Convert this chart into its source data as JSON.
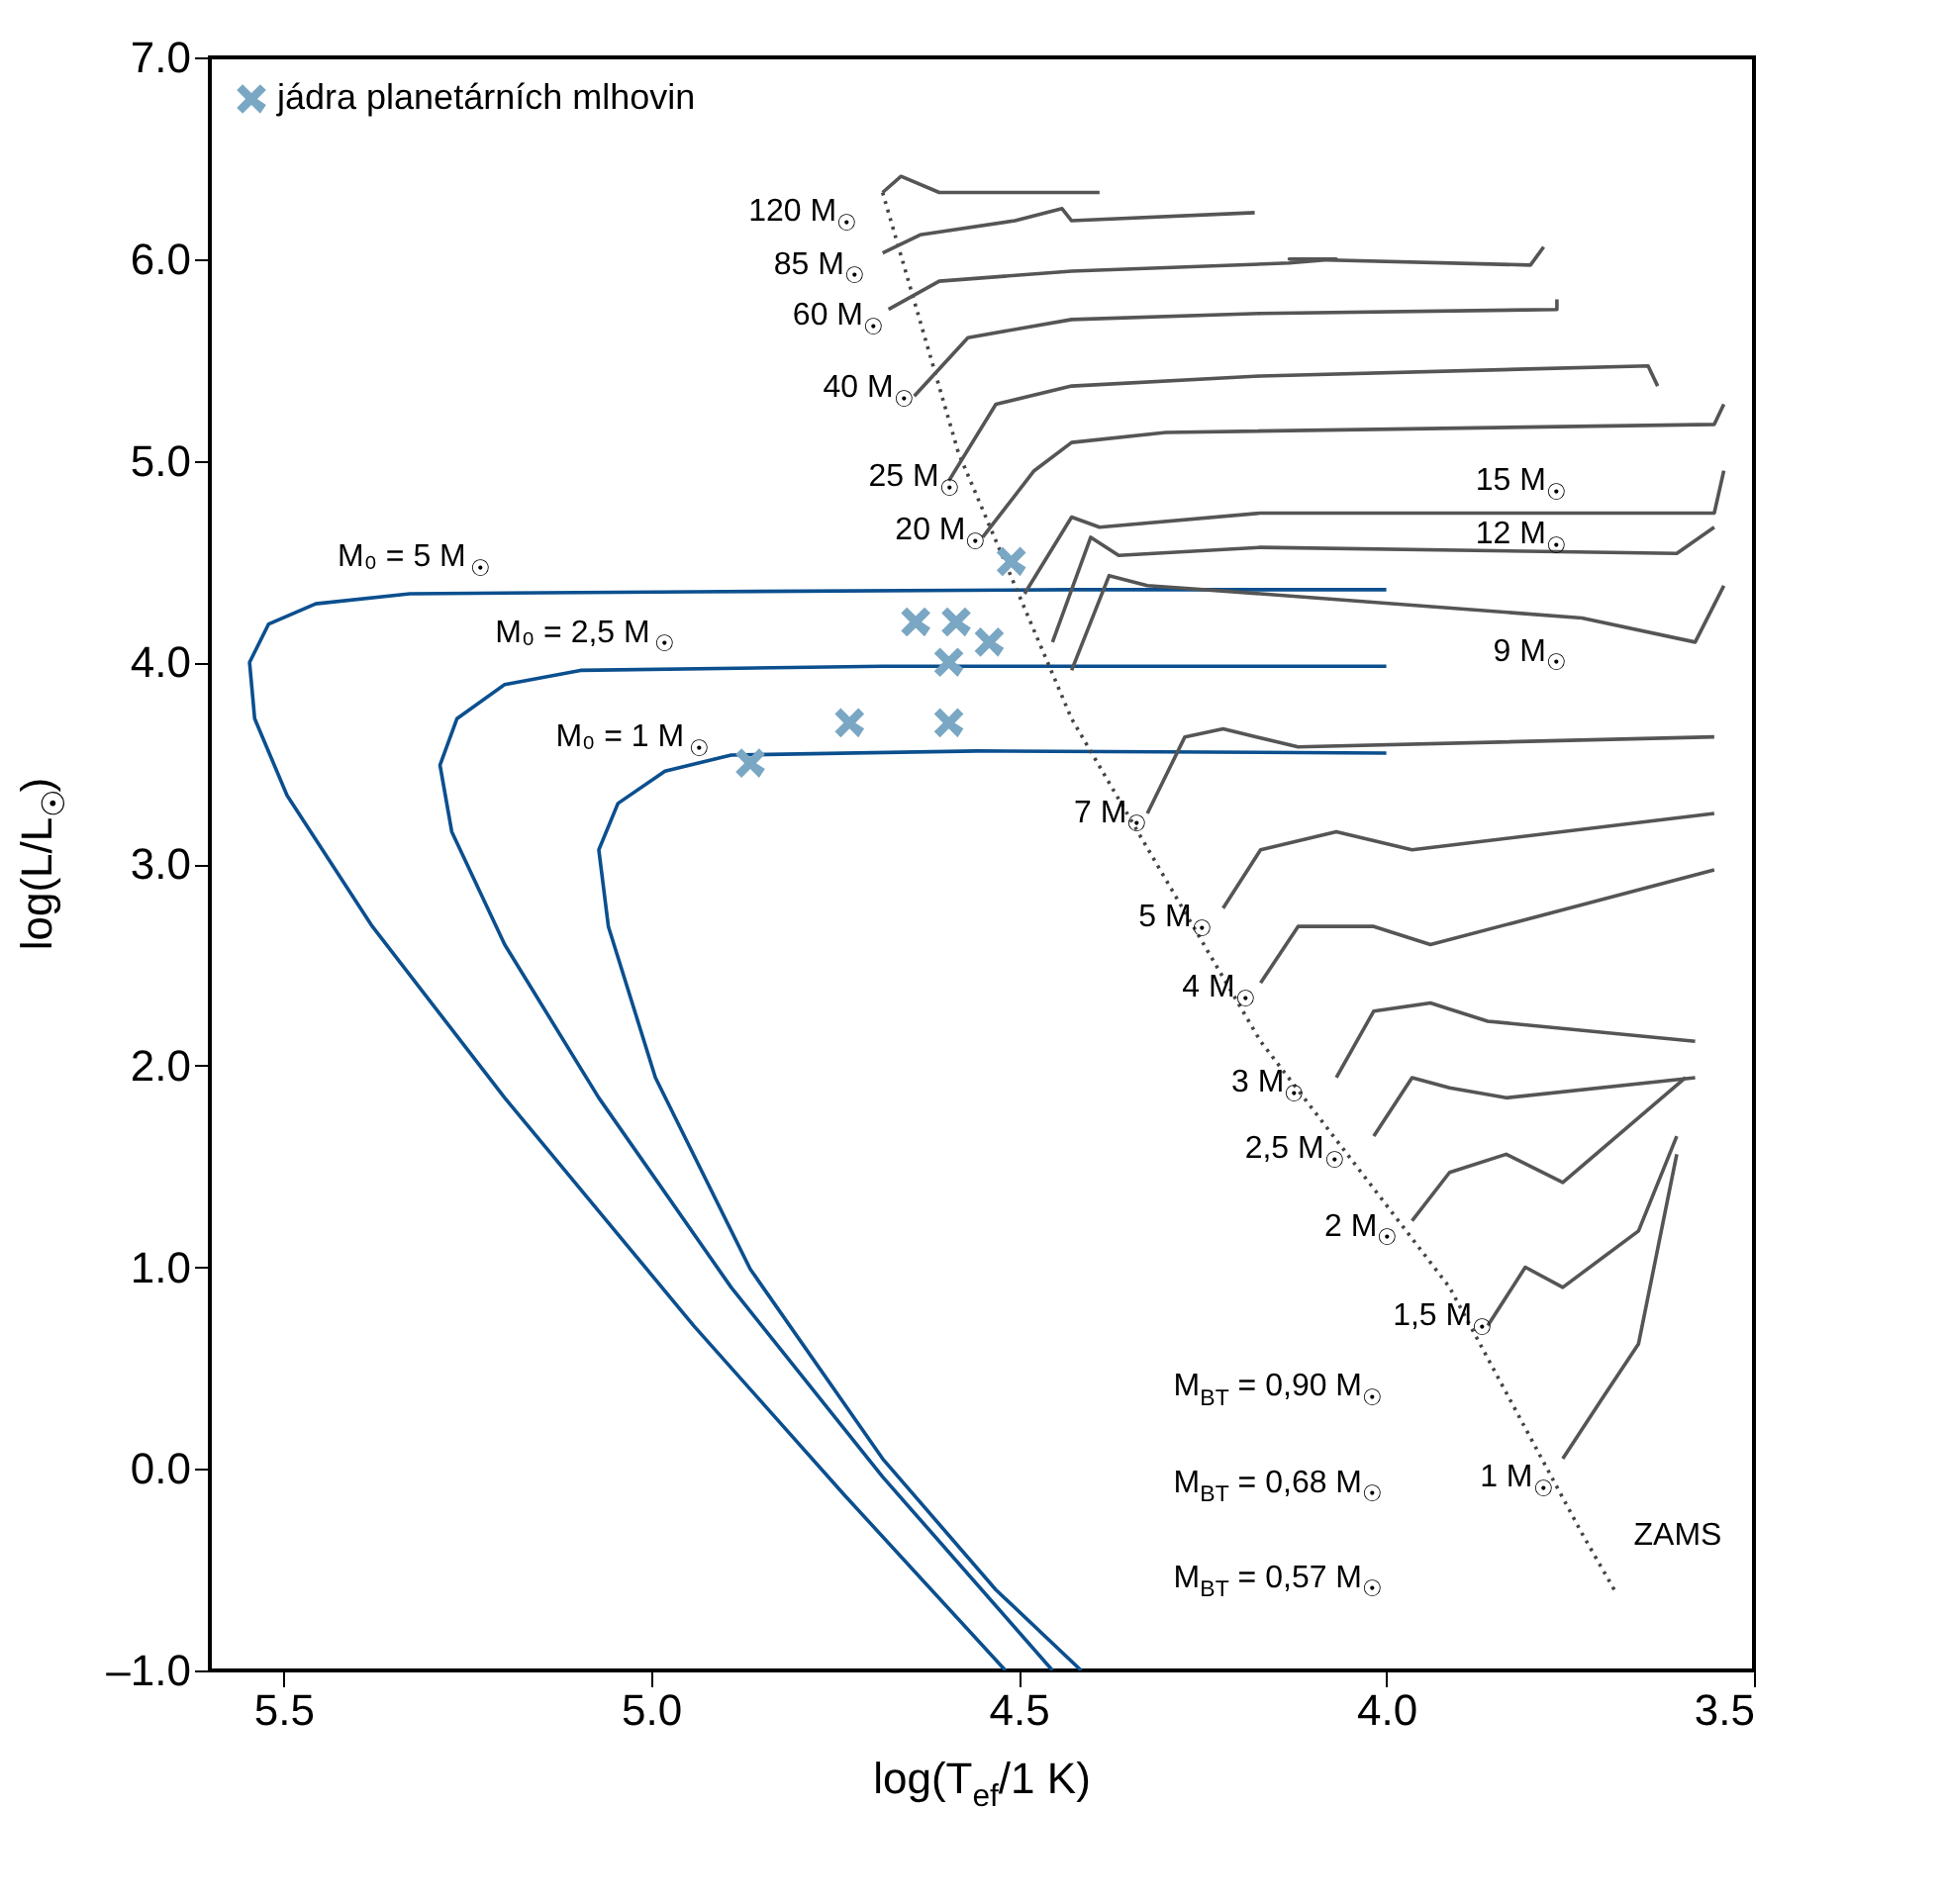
{
  "chart_data": {
    "type": "line",
    "xlabel": "log(T$_{ef}$/1 K)",
    "ylabel": "log(L/L$_{☉}$)",
    "xlim": [
      5.6,
      3.5
    ],
    "ylim": [
      -1.0,
      7.0
    ],
    "xticks": [
      {
        "value": 5.5,
        "label": "5.5"
      },
      {
        "value": 5.0,
        "label": "5.0"
      },
      {
        "value": 4.5,
        "label": "4.5"
      },
      {
        "value": 4.0,
        "label": "4.0"
      },
      {
        "value": 3.5,
        "label": "3.5"
      }
    ],
    "yticks": [
      {
        "value": -1.0,
        "label": "–1.0"
      },
      {
        "value": 0.0,
        "label": "0.0"
      },
      {
        "value": 1.0,
        "label": "1.0"
      },
      {
        "value": 2.0,
        "label": "2.0"
      },
      {
        "value": 3.0,
        "label": "3.0"
      },
      {
        "value": 4.0,
        "label": "4.0"
      },
      {
        "value": 5.0,
        "label": "5.0"
      },
      {
        "value": 6.0,
        "label": "6.0"
      },
      {
        "value": 7.0,
        "label": "7.0"
      }
    ],
    "grid": false,
    "legend": "top left",
    "line_style": "solid",
    "series": [
      {
        "color": "#0b4f8e",
        "x": [
          4.0,
          4.43,
          4.94,
          5.328,
          5.456,
          5.52,
          5.546,
          5.539,
          5.495,
          5.379,
          5.199,
          4.942,
          4.737,
          4.518
        ],
        "values": [
          4.36,
          4.36,
          4.35,
          4.34,
          4.29,
          4.19,
          4.0,
          3.72,
          3.34,
          2.69,
          1.84,
          0.71,
          -0.13,
          -1.0
        ]
      },
      {
        "color": "#0b4f8e",
        "x": [
          4.0,
          4.685,
          5.096,
          5.199,
          5.264,
          5.287,
          5.271,
          5.199,
          5.071,
          4.891,
          4.685,
          4.454
        ],
        "values": [
          3.98,
          3.98,
          3.96,
          3.89,
          3.72,
          3.49,
          3.16,
          2.6,
          1.84,
          0.9,
          -0.04,
          -1.0
        ]
      },
      {
        "color": "#0b4f8e",
        "x": [
          4.0,
          4.557,
          4.891,
          4.981,
          5.045,
          5.071,
          5.058,
          4.994,
          4.865,
          4.685,
          4.531,
          4.415
        ],
        "values": [
          3.55,
          3.56,
          3.54,
          3.46,
          3.3,
          3.07,
          2.69,
          1.94,
          0.99,
          0.05,
          -0.6,
          -1.0
        ]
      },
      {
        "color": "#444444",
        "line_style": "dotted",
        "x": [
          4.685,
          4.582,
          4.428,
          4.171,
          3.914,
          3.734,
          3.69
        ],
        "values": [
          6.33,
          5.04,
          3.72,
          2.12,
          0.9,
          -0.32,
          -0.6
        ]
      },
      {
        "color": "#555555",
        "x": [
          4.685,
          4.66,
          4.608,
          4.39
        ],
        "values": [
          6.33,
          6.41,
          6.33,
          6.33
        ]
      },
      {
        "color": "#555555",
        "x": [
          4.685,
          4.634,
          4.505,
          4.441,
          4.428,
          4.179
        ],
        "values": [
          6.03,
          6.12,
          6.19,
          6.25,
          6.19,
          6.23
        ]
      },
      {
        "color": "#555555",
        "x": [
          4.677,
          4.608,
          4.428,
          4.132,
          4.068,
          4.132,
          3.804,
          3.786
        ],
        "values": [
          5.75,
          5.89,
          5.94,
          5.98,
          6.0,
          6.0,
          5.97,
          6.06
        ]
      },
      {
        "color": "#555555",
        "x": [
          4.642,
          4.569,
          4.428,
          4.171,
          3.768,
          3.768
        ],
        "values": [
          5.32,
          5.61,
          5.7,
          5.73,
          5.75,
          5.8
        ]
      },
      {
        "color": "#555555",
        "x": [
          4.595,
          4.531,
          4.428,
          4.171,
          3.644,
          3.631
        ],
        "values": [
          4.9,
          5.28,
          5.37,
          5.42,
          5.47,
          5.37
        ]
      },
      {
        "color": "#555555",
        "x": [
          4.549,
          4.479,
          4.428,
          4.3,
          3.554,
          3.541
        ],
        "values": [
          4.62,
          4.95,
          5.09,
          5.14,
          5.18,
          5.28
        ]
      },
      {
        "color": "#555555",
        "x": [
          4.492,
          4.428,
          4.39,
          4.171,
          3.554,
          3.541
        ],
        "values": [
          4.34,
          4.72,
          4.67,
          4.74,
          4.74,
          4.95
        ]
      },
      {
        "color": "#555555",
        "x": [
          4.454,
          4.402,
          4.364,
          4.171,
          3.605,
          3.554
        ],
        "values": [
          4.1,
          4.62,
          4.53,
          4.57,
          4.54,
          4.67
        ]
      },
      {
        "color": "#555555",
        "x": [
          4.428,
          4.377,
          4.325,
          4.171,
          3.734,
          3.58,
          3.541
        ],
        "values": [
          3.96,
          4.43,
          4.38,
          4.34,
          4.22,
          4.1,
          4.38
        ]
      },
      {
        "color": "#555555",
        "x": [
          4.325,
          4.274,
          4.222,
          4.12,
          3.554
        ],
        "values": [
          3.25,
          3.63,
          3.67,
          3.58,
          3.63
        ]
      },
      {
        "color": "#555555",
        "x": [
          4.222,
          4.171,
          4.068,
          3.965,
          3.554
        ],
        "values": [
          2.78,
          3.07,
          3.16,
          3.07,
          3.25
        ]
      },
      {
        "color": "#555555",
        "x": [
          4.171,
          4.12,
          4.017,
          3.94,
          3.554
        ],
        "values": [
          2.41,
          2.69,
          2.69,
          2.6,
          2.97
        ]
      },
      {
        "color": "#555555",
        "x": [
          4.068,
          4.017,
          3.94,
          3.862,
          3.58
        ],
        "values": [
          1.94,
          2.27,
          2.31,
          2.22,
          2.12
        ]
      },
      {
        "color": "#555555",
        "x": [
          4.017,
          3.965,
          3.914,
          3.837,
          3.58
        ],
        "values": [
          1.65,
          1.94,
          1.89,
          1.84,
          1.94
        ]
      },
      {
        "color": "#555555",
        "x": [
          3.965,
          3.914,
          3.837,
          3.76,
          3.593
        ],
        "values": [
          1.23,
          1.47,
          1.56,
          1.42,
          1.94
        ]
      },
      {
        "color": "#555555",
        "x": [
          3.862,
          3.811,
          3.76,
          3.657,
          3.605
        ],
        "values": [
          0.71,
          1.0,
          0.9,
          1.18,
          1.65
        ]
      },
      {
        "color": "#555555",
        "x": [
          3.76,
          3.708,
          3.657,
          3.631,
          3.605
        ],
        "values": [
          0.05,
          0.34,
          0.62,
          1.09,
          1.56
        ]
      },
      {
        "type": "scatter",
        "name": "jádra planetárních mlhovin",
        "color": "#7aa7c3",
        "marker": "cross",
        "x": [
          4.865,
          4.73,
          4.64,
          4.585,
          4.595,
          4.595,
          4.54,
          4.51
        ],
        "values": [
          3.5,
          3.7,
          4.2,
          4.2,
          4.0,
          3.7,
          4.1,
          4.5
        ]
      }
    ],
    "annotations": [
      "120 M$_{☉}$",
      "85 M$_{☉}$",
      "60 M$_{☉}$",
      "40 M$_{☉}$",
      "25 M$_{☉}$",
      "20 M$_{☉}$",
      "15 M$_{☉}$",
      "12 M$_{☉}$",
      "9 M$_{☉}$",
      "7 M$_{☉}$",
      "5 M$_{☉}$",
      "4 M$_{☉}$",
      "3 M$_{☉}$",
      "2,5 M$_{☉}$",
      "2 M$_{☉}$",
      "1,5 M$_{☉}$",
      "1 M$_{☉}$",
      "ZAMS",
      "M₀ = 5 M$_{☉}$",
      "M₀ = 2,5 M$_{☉}$",
      "M₀ = 1 M$_{☉}$",
      "M$_{BT}$ = 0,90 M$_{☉}$",
      "M$_{BT}$ = 0,68 M$_{☉}$",
      "M$_{BT}$ = 0,57 M$_{☉}$"
    ]
  }
}
